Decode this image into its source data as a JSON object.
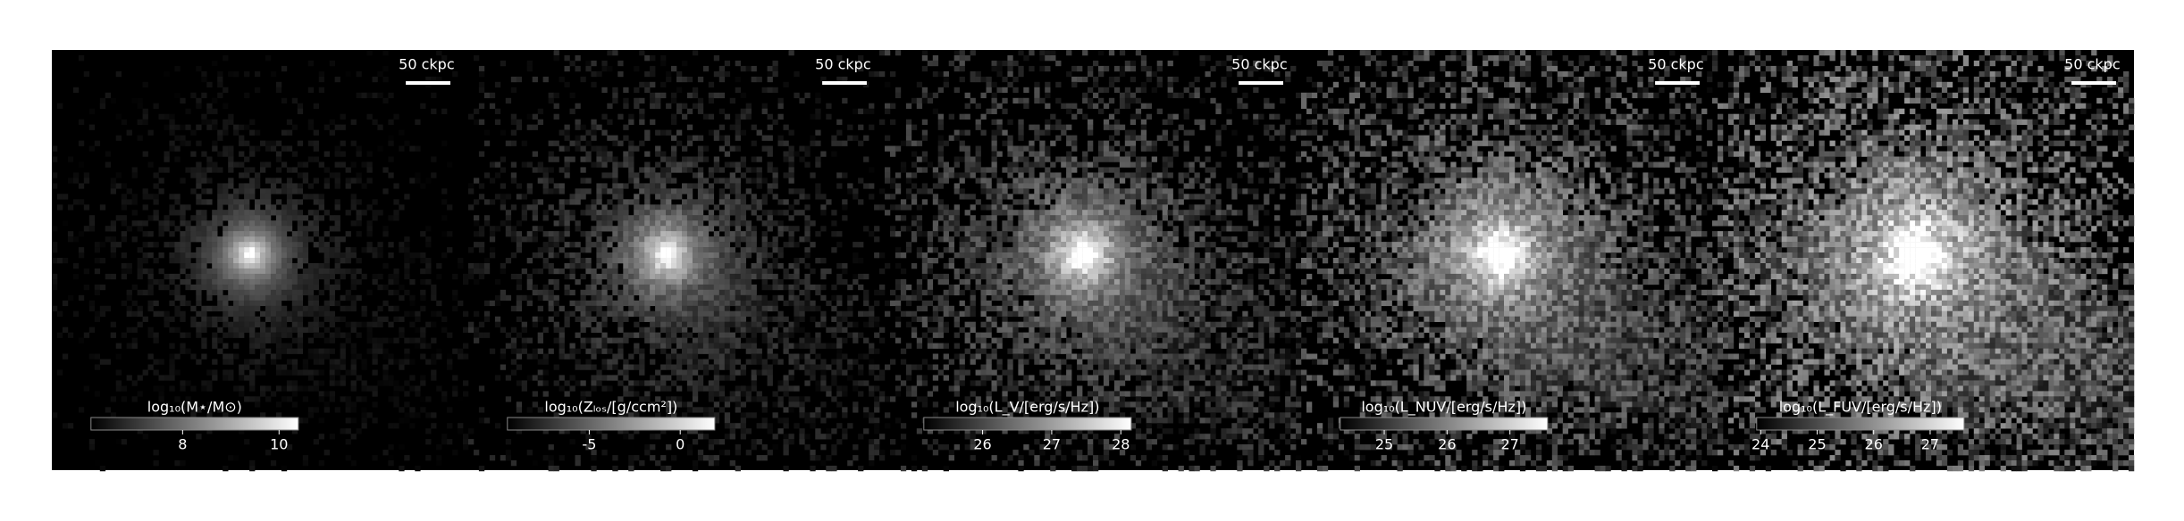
{
  "chart_data": [
    {
      "type": "image",
      "scalebar": "50 ckpc",
      "colorbar_label": "log₁₀(M⋆/M⊙)",
      "clim": [
        6.1,
        10.4
      ],
      "ticks": [
        8,
        10
      ]
    },
    {
      "type": "image",
      "scalebar": "50 ckpc",
      "colorbar_label": "log₁₀(Zₗₒₛ/[g/ccm²])",
      "clim": [
        -9.5,
        1.9
      ],
      "ticks": [
        -5,
        0
      ]
    },
    {
      "type": "image",
      "scalebar": "50 ckpc",
      "colorbar_label": "log₁₀(L_V/[erg/s/Hz])",
      "clim": [
        25.15,
        28.15
      ],
      "ticks": [
        26,
        27,
        28
      ]
    },
    {
      "type": "image",
      "scalebar": "50 ckpc",
      "colorbar_label": "log₁₀(L_NUV/[erg/s/Hz])",
      "clim": [
        24.3,
        27.6
      ],
      "ticks": [
        25,
        26,
        27
      ]
    },
    {
      "type": "image",
      "scalebar": "50 ckpc",
      "colorbar_label": "log₁₀(L_FUV/[erg/s/Hz])",
      "clim": [
        23.93,
        27.6
      ],
      "ticks": [
        24,
        25,
        26,
        27
      ]
    }
  ]
}
